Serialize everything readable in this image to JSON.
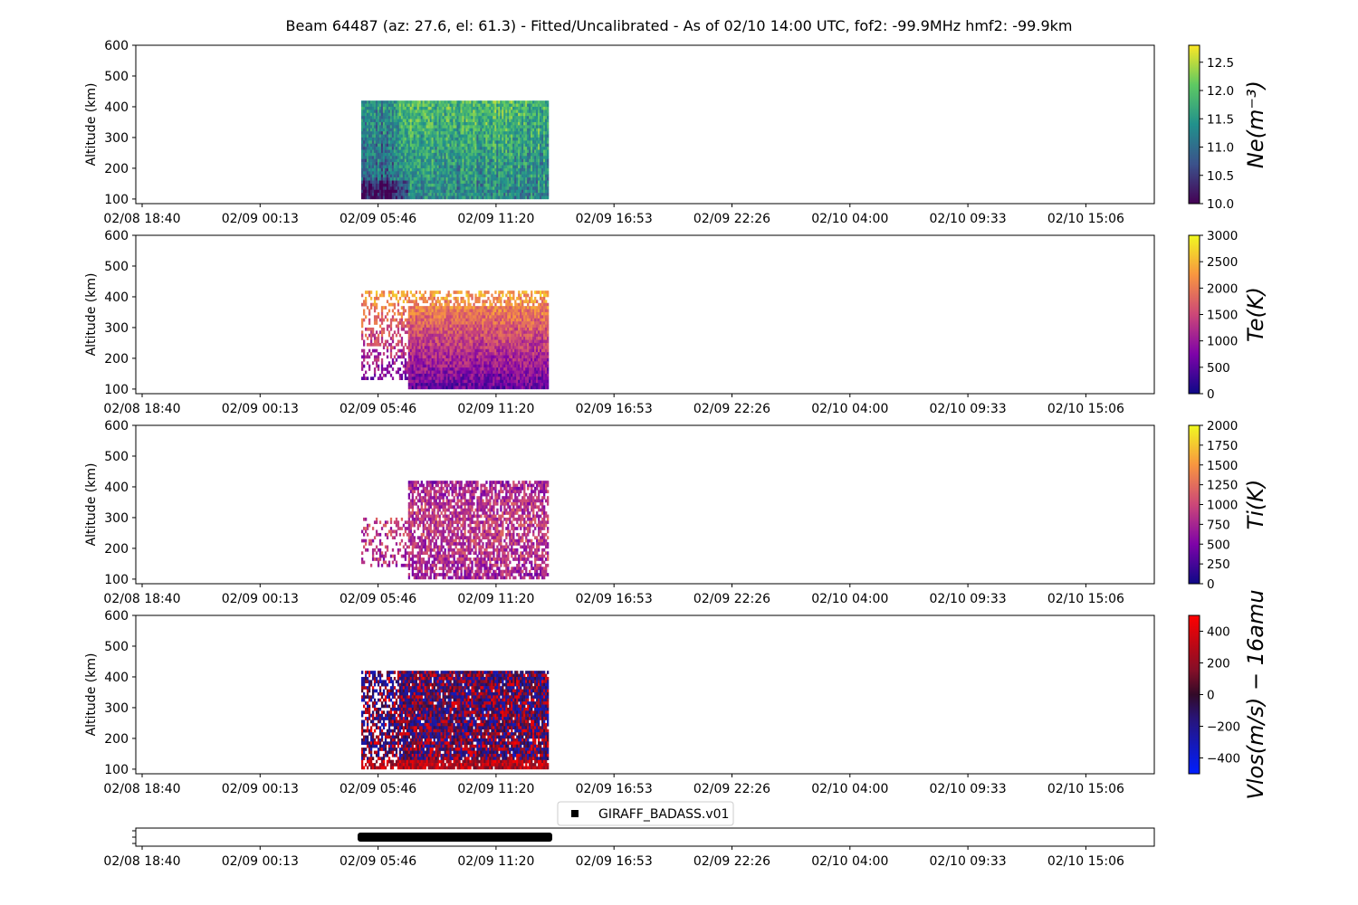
{
  "chart_data": {
    "type": "heatmap",
    "title": "Beam 64487 (az: 27.6, el: 61.3) - Fitted/Uncalibrated - As of 02/10 14:00 UTC, fof2: -99.9MHz  hmf2: -99.9km",
    "x_ticks": [
      "02/08 18:40",
      "02/09 00:13",
      "02/09 05:46",
      "02/09 11:20",
      "02/09 16:53",
      "02/09 22:26",
      "02/10 04:00",
      "02/10 09:33",
      "02/10 15:06"
    ],
    "data_time_range": [
      "02/09 04:55",
      "02/09 13:45"
    ],
    "panels": [
      {
        "ylabel": "Altitude (km)",
        "yticks": [
          "600",
          "500",
          "400",
          "300",
          "200",
          "100"
        ],
        "ylim": [
          85,
          600
        ],
        "alt_range": [
          100,
          420
        ],
        "colorbar_label": "Ne(m⁻³)",
        "colormap": "viridis",
        "crange": [
          10.0,
          12.8
        ],
        "colorbar_ticks": [
          "10.0",
          "10.5",
          "11.0",
          "11.5",
          "12.0",
          "12.5"
        ]
      },
      {
        "ylabel": "Altitude (km)",
        "yticks": [
          "600",
          "500",
          "400",
          "300",
          "200",
          "100"
        ],
        "ylim": [
          85,
          600
        ],
        "alt_range": [
          100,
          420
        ],
        "colorbar_label": "Te(K)",
        "colormap": "plasma",
        "crange": [
          0,
          3000
        ],
        "colorbar_ticks": [
          "0",
          "500",
          "1000",
          "1500",
          "2000",
          "2500",
          "3000"
        ]
      },
      {
        "ylabel": "Altitude (km)",
        "yticks": [
          "600",
          "500",
          "400",
          "300",
          "200",
          "100"
        ],
        "ylim": [
          85,
          600
        ],
        "alt_range": [
          100,
          420
        ],
        "colorbar_label": "Ti(K)",
        "colormap": "plasma",
        "crange": [
          0,
          2000
        ],
        "colorbar_ticks": [
          "0",
          "250",
          "500",
          "750",
          "1000",
          "1250",
          "1500",
          "1750",
          "2000"
        ]
      },
      {
        "ylabel": "Altitude (km)",
        "yticks": [
          "600",
          "500",
          "400",
          "300",
          "200",
          "100"
        ],
        "ylim": [
          85,
          600
        ],
        "alt_range": [
          100,
          420
        ],
        "colorbar_label": "Vlos(m/s) − 16amu",
        "colormap": "blue-black-red",
        "crange": [
          -500,
          500
        ],
        "colorbar_ticks": [
          "−400",
          "−200",
          "0",
          "200",
          "400"
        ]
      }
    ],
    "legend": {
      "label": "GIRAFF_BADASS.v01",
      "placement": "upper-center",
      "color": "#000000"
    }
  }
}
